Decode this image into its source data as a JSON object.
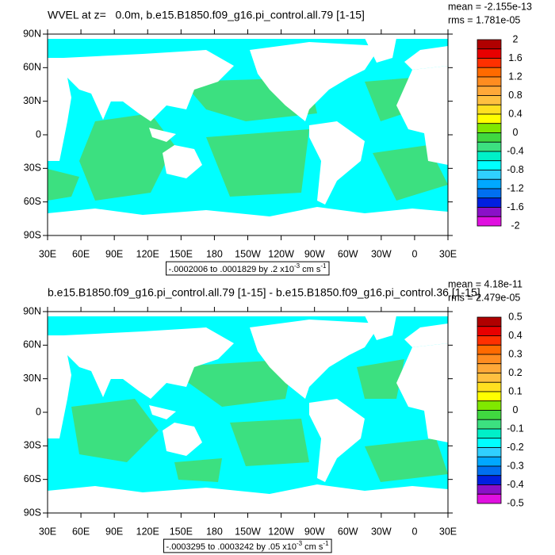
{
  "axes": {
    "y_labels": [
      "90N",
      "60N",
      "30N",
      "0",
      "30S",
      "60S",
      "90S"
    ],
    "x_labels": [
      "30E",
      "60E",
      "90E",
      "120E",
      "150E",
      "180",
      "150W",
      "120W",
      "90W",
      "60W",
      "30W",
      "0",
      "30E"
    ]
  },
  "colorbar_colors": [
    "#b00000",
    "#e80000",
    "#ff3000",
    "#ff6a00",
    "#ff8c20",
    "#ffa838",
    "#ffc040",
    "#ffe020",
    "#ffff00",
    "#80e800",
    "#40d840",
    "#3ce080",
    "#00f0c8",
    "#00ffff",
    "#30d0ff",
    "#00a8ff",
    "#0070f0",
    "#0020e0",
    "#8a10c8",
    "#e010e0",
    "#c8c8c8",
    "#707070"
  ],
  "panels": [
    {
      "title": "WVEL at z=   0.0m, b.e15.B1850.f09_g16.pi_control.all.79 [1-15]",
      "mean": "mean = -2.155e-13",
      "rms": "rms = 1.781e-05",
      "info": {
        "text": "-.0002006 to .0001829 by .2 x10",
        "exp": "-3",
        "unit": " cm s",
        "unit_exp": "-1"
      },
      "colorbar_labels": [
        "2",
        "1.6",
        "1.2",
        "0.8",
        "0.4",
        "0",
        "-0.4",
        "-0.8",
        "-1.2",
        "-1.6",
        "-2"
      ]
    },
    {
      "title": "b.e15.B1850.f09_g16.pi_control.all.79 [1-15] - b.e15.B1850.f09_g16.pi_control.36 [1-15]",
      "mean": "mean = 4.18e-11",
      "rms": "rms = 2.479e-05",
      "info": {
        "text": "-.0003295 to .0003242 by .05 x10",
        "exp": "-3",
        "unit": " cm s",
        "unit_exp": "-1"
      },
      "colorbar_labels": [
        "0.5",
        "0.4",
        "0.3",
        "0.2",
        "0.1",
        "0",
        "-0.1",
        "-0.2",
        "-0.3",
        "-0.4",
        "-0.5"
      ]
    }
  ]
}
